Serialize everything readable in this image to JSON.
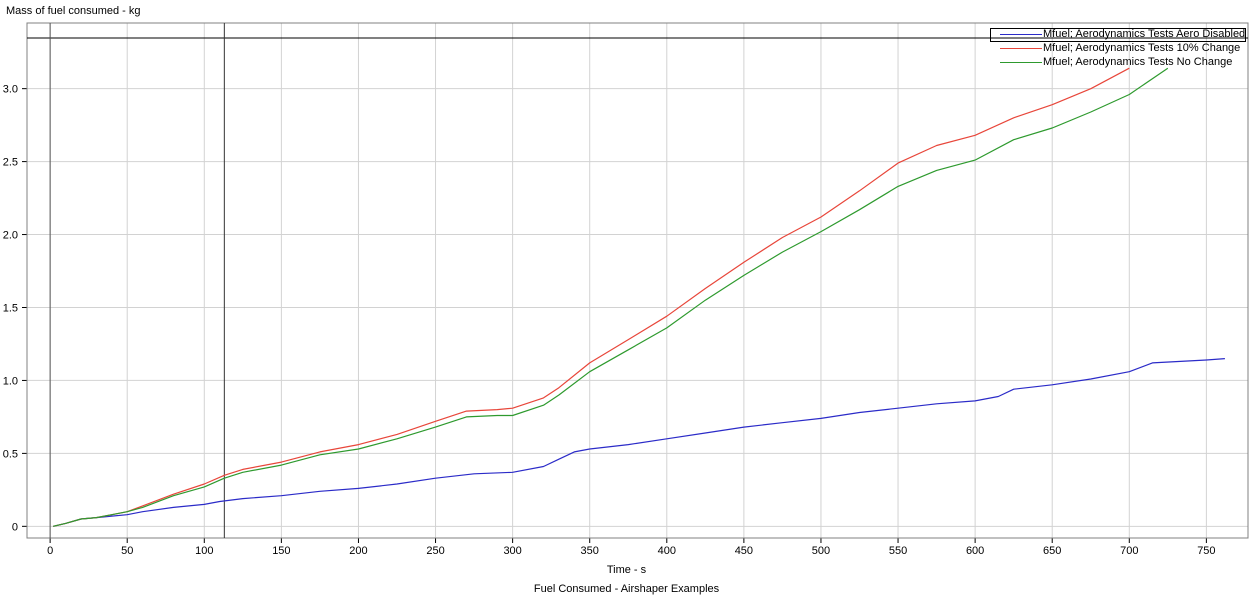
{
  "chart_data": {
    "type": "line",
    "title": "",
    "ylabel": "Mass of fuel consumed - kg",
    "xlabel": "Time - s",
    "caption": "Fuel Consumed - Airshaper Examples",
    "xlim": [
      -15,
      777
    ],
    "ylim": [
      -0.08,
      3.45
    ],
    "x_ticks": [
      0,
      50,
      100,
      150,
      200,
      250,
      300,
      350,
      400,
      450,
      500,
      550,
      600,
      650,
      700,
      750
    ],
    "y_ticks": [
      0,
      0.5,
      1.0,
      1.5,
      2.0,
      2.5,
      3.0
    ],
    "y_tick_labels": [
      "0",
      "0.5",
      "1.0",
      "1.5",
      "2.0",
      "2.5",
      "3.0"
    ],
    "grid": true,
    "cursor_x": 113,
    "legend_position": "top-right",
    "series": [
      {
        "name": "Mfuel; Aerodynamics Tests Aero Disabled",
        "color": "#2b2bc8",
        "x": [
          2,
          10,
          20,
          30,
          40,
          50,
          60,
          80,
          100,
          110,
          125,
          150,
          175,
          200,
          225,
          250,
          275,
          300,
          320,
          330,
          340,
          350,
          375,
          400,
          425,
          450,
          475,
          500,
          525,
          550,
          575,
          600,
          615,
          625,
          650,
          675,
          700,
          715,
          750,
          762
        ],
        "values": [
          0.0,
          0.02,
          0.05,
          0.06,
          0.07,
          0.08,
          0.1,
          0.13,
          0.15,
          0.17,
          0.19,
          0.21,
          0.24,
          0.26,
          0.29,
          0.33,
          0.36,
          0.37,
          0.41,
          0.46,
          0.51,
          0.53,
          0.56,
          0.6,
          0.64,
          0.68,
          0.71,
          0.74,
          0.78,
          0.81,
          0.84,
          0.86,
          0.89,
          0.94,
          0.97,
          1.01,
          1.06,
          1.12,
          1.14,
          1.15
        ]
      },
      {
        "name": "Mfuel; Aerodynamics Tests 10%  Change",
        "color": "#e8463a",
        "x": [
          2,
          10,
          20,
          30,
          40,
          50,
          60,
          80,
          100,
          113,
          125,
          150,
          175,
          200,
          225,
          250,
          270,
          290,
          300,
          320,
          330,
          350,
          375,
          400,
          425,
          450,
          475,
          500,
          525,
          550,
          575,
          600,
          625,
          650,
          675,
          700
        ],
        "values": [
          0.0,
          0.02,
          0.05,
          0.06,
          0.08,
          0.1,
          0.14,
          0.22,
          0.29,
          0.35,
          0.39,
          0.44,
          0.51,
          0.56,
          0.63,
          0.72,
          0.79,
          0.8,
          0.81,
          0.88,
          0.95,
          1.12,
          1.28,
          1.44,
          1.63,
          1.81,
          1.98,
          2.12,
          2.3,
          2.49,
          2.61,
          2.68,
          2.8,
          2.89,
          3.0,
          3.14
        ]
      },
      {
        "name": "Mfuel; Aerodynamics Tests No Change",
        "color": "#2e9a2e",
        "x": [
          2,
          10,
          20,
          30,
          40,
          50,
          60,
          80,
          100,
          113,
          125,
          150,
          175,
          200,
          225,
          250,
          270,
          290,
          300,
          320,
          330,
          350,
          375,
          400,
          425,
          450,
          475,
          500,
          525,
          550,
          575,
          600,
          625,
          650,
          675,
          700,
          725
        ],
        "values": [
          0.0,
          0.02,
          0.05,
          0.06,
          0.08,
          0.1,
          0.13,
          0.21,
          0.27,
          0.33,
          0.37,
          0.42,
          0.49,
          0.53,
          0.6,
          0.68,
          0.75,
          0.76,
          0.76,
          0.83,
          0.9,
          1.06,
          1.21,
          1.36,
          1.55,
          1.72,
          1.88,
          2.02,
          2.17,
          2.33,
          2.44,
          2.51,
          2.65,
          2.73,
          2.84,
          2.96,
          3.14
        ]
      }
    ]
  }
}
